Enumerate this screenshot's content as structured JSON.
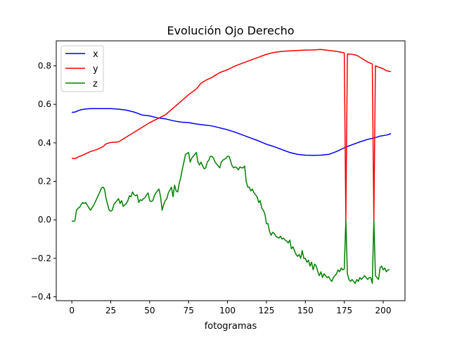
{
  "chart_data": {
    "type": "line",
    "title": "Evolución Ojo Derecho",
    "xlabel": "fotogramas",
    "ylabel": "",
    "xlim": [
      -10,
      214
    ],
    "ylim": [
      -0.42,
      0.93
    ],
    "x_ticks": [
      0,
      25,
      50,
      75,
      100,
      125,
      150,
      175,
      200
    ],
    "x_tick_labels": [
      "0",
      "25",
      "50",
      "75",
      "100",
      "125",
      "150",
      "175",
      "200"
    ],
    "y_ticks": [
      -0.4,
      -0.2,
      0.0,
      0.2,
      0.4,
      0.6,
      0.8
    ],
    "y_tick_labels": [
      "−0.4",
      "−0.2",
      "0.0",
      "0.2",
      "0.4",
      "0.6",
      "0.8"
    ],
    "legend_position": "top-left",
    "grid": false,
    "series": [
      {
        "name": "x",
        "color": "#0000ff",
        "points": [
          [
            0,
            0.558
          ],
          [
            2,
            0.56
          ],
          [
            5,
            0.57
          ],
          [
            8,
            0.575
          ],
          [
            12,
            0.578
          ],
          [
            18,
            0.578
          ],
          [
            25,
            0.578
          ],
          [
            30,
            0.575
          ],
          [
            35,
            0.57
          ],
          [
            40,
            0.56
          ],
          [
            45,
            0.545
          ],
          [
            50,
            0.54
          ],
          [
            55,
            0.53
          ],
          [
            60,
            0.525
          ],
          [
            65,
            0.515
          ],
          [
            70,
            0.508
          ],
          [
            75,
            0.505
          ],
          [
            80,
            0.498
          ],
          [
            85,
            0.493
          ],
          [
            90,
            0.488
          ],
          [
            95,
            0.478
          ],
          [
            100,
            0.468
          ],
          [
            105,
            0.455
          ],
          [
            110,
            0.44
          ],
          [
            115,
            0.425
          ],
          [
            120,
            0.41
          ],
          [
            125,
            0.393
          ],
          [
            130,
            0.38
          ],
          [
            135,
            0.365
          ],
          [
            140,
            0.35
          ],
          [
            145,
            0.34
          ],
          [
            150,
            0.336
          ],
          [
            155,
            0.335
          ],
          [
            160,
            0.336
          ],
          [
            165,
            0.34
          ],
          [
            170,
            0.355
          ],
          [
            176,
            0.378
          ],
          [
            180,
            0.39
          ],
          [
            185,
            0.405
          ],
          [
            190,
            0.418
          ],
          [
            194,
            0.425
          ],
          [
            198,
            0.435
          ],
          [
            202,
            0.44
          ],
          [
            205,
            0.448
          ]
        ]
      },
      {
        "name": "y",
        "color": "#ff0000",
        "points": [
          [
            0,
            0.32
          ],
          [
            2,
            0.318
          ],
          [
            5,
            0.33
          ],
          [
            8,
            0.34
          ],
          [
            12,
            0.355
          ],
          [
            16,
            0.365
          ],
          [
            20,
            0.38
          ],
          [
            22,
            0.395
          ],
          [
            25,
            0.402
          ],
          [
            30,
            0.405
          ],
          [
            32,
            0.415
          ],
          [
            35,
            0.43
          ],
          [
            40,
            0.455
          ],
          [
            45,
            0.48
          ],
          [
            50,
            0.505
          ],
          [
            55,
            0.525
          ],
          [
            60,
            0.545
          ],
          [
            65,
            0.58
          ],
          [
            70,
            0.615
          ],
          [
            75,
            0.65
          ],
          [
            80,
            0.68
          ],
          [
            83,
            0.71
          ],
          [
            86,
            0.725
          ],
          [
            90,
            0.74
          ],
          [
            95,
            0.765
          ],
          [
            100,
            0.78
          ],
          [
            105,
            0.8
          ],
          [
            110,
            0.815
          ],
          [
            115,
            0.83
          ],
          [
            120,
            0.845
          ],
          [
            125,
            0.86
          ],
          [
            130,
            0.87
          ],
          [
            135,
            0.875
          ],
          [
            140,
            0.878
          ],
          [
            145,
            0.88
          ],
          [
            150,
            0.882
          ],
          [
            155,
            0.883
          ],
          [
            160,
            0.885
          ],
          [
            165,
            0.88
          ],
          [
            170,
            0.875
          ],
          [
            175,
            0.868
          ],
          [
            176,
            0.0
          ],
          [
            177,
            0.862
          ],
          [
            180,
            0.86
          ],
          [
            183,
            0.855
          ],
          [
            186,
            0.84
          ],
          [
            190,
            0.82
          ],
          [
            193,
            0.81
          ],
          [
            194,
            0.0
          ],
          [
            195,
            0.8
          ],
          [
            200,
            0.785
          ],
          [
            202,
            0.775
          ],
          [
            205,
            0.77
          ]
        ]
      },
      {
        "name": "z",
        "color": "#008000",
        "points": [
          [
            0,
            -0.005
          ],
          [
            1,
            -0.008
          ],
          [
            2,
            -0.005
          ],
          [
            3,
            0.05
          ],
          [
            4,
            0.06
          ],
          [
            5,
            0.065
          ],
          [
            6,
            0.08
          ],
          [
            7,
            0.09
          ],
          [
            8,
            0.085
          ],
          [
            9,
            0.09
          ],
          [
            10,
            0.075
          ],
          [
            12,
            0.05
          ],
          [
            14,
            0.075
          ],
          [
            16,
            0.11
          ],
          [
            18,
            0.145
          ],
          [
            19,
            0.165
          ],
          [
            20,
            0.17
          ],
          [
            21,
            0.16
          ],
          [
            22,
            0.11
          ],
          [
            24,
            0.05
          ],
          [
            25,
            0.045
          ],
          [
            26,
            0.05
          ],
          [
            27,
            0.08
          ],
          [
            29,
            0.1
          ],
          [
            30,
            0.11
          ],
          [
            31,
            0.085
          ],
          [
            32,
            0.1
          ],
          [
            33,
            0.07
          ],
          [
            35,
            0.085
          ],
          [
            36,
            0.1
          ],
          [
            37,
            0.125
          ],
          [
            38,
            0.12
          ],
          [
            39,
            0.145
          ],
          [
            40,
            0.13
          ],
          [
            41,
            0.125
          ],
          [
            42,
            0.13
          ],
          [
            43,
            0.09
          ],
          [
            44,
            0.105
          ],
          [
            45,
            0.1
          ],
          [
            46,
            0.11
          ],
          [
            47,
            0.115
          ],
          [
            48,
            0.13
          ],
          [
            49,
            0.14
          ],
          [
            50,
            0.1
          ],
          [
            51,
            0.095
          ],
          [
            52,
            0.1
          ],
          [
            53,
            0.125
          ],
          [
            54,
            0.14
          ],
          [
            55,
            0.15
          ],
          [
            56,
            0.16
          ],
          [
            57,
            0.12
          ],
          [
            58,
            0.05
          ],
          [
            59,
            0.08
          ],
          [
            60,
            0.1
          ],
          [
            61,
            0.11
          ],
          [
            62,
            0.14
          ],
          [
            63,
            0.155
          ],
          [
            64,
            0.17
          ],
          [
            65,
            0.12
          ],
          [
            66,
            0.18
          ],
          [
            67,
            0.15
          ],
          [
            68,
            0.145
          ],
          [
            69,
            0.19
          ],
          [
            70,
            0.22
          ],
          [
            71,
            0.265
          ],
          [
            72,
            0.3
          ],
          [
            73,
            0.34
          ],
          [
            74,
            0.345
          ],
          [
            75,
            0.35
          ],
          [
            76,
            0.3
          ],
          [
            77,
            0.32
          ],
          [
            78,
            0.33
          ],
          [
            79,
            0.34
          ],
          [
            80,
            0.35
          ],
          [
            81,
            0.3
          ],
          [
            82,
            0.285
          ],
          [
            83,
            0.3
          ],
          [
            84,
            0.28
          ],
          [
            85,
            0.265
          ],
          [
            86,
            0.27
          ],
          [
            87,
            0.3
          ],
          [
            88,
            0.31
          ],
          [
            89,
            0.33
          ],
          [
            90,
            0.33
          ],
          [
            91,
            0.32
          ],
          [
            92,
            0.3
          ],
          [
            93,
            0.29
          ],
          [
            95,
            0.27
          ],
          [
            96,
            0.3
          ],
          [
            97,
            0.31
          ],
          [
            98,
            0.315
          ],
          [
            99,
            0.32
          ],
          [
            100,
            0.33
          ],
          [
            101,
            0.33
          ],
          [
            102,
            0.305
          ],
          [
            103,
            0.28
          ],
          [
            104,
            0.27
          ],
          [
            105,
            0.275
          ],
          [
            106,
            0.27
          ],
          [
            107,
            0.26
          ],
          [
            108,
            0.275
          ],
          [
            109,
            0.27
          ],
          [
            110,
            0.27
          ],
          [
            111,
            0.28
          ],
          [
            112,
            0.2
          ],
          [
            113,
            0.17
          ],
          [
            114,
            0.17
          ],
          [
            115,
            0.15
          ],
          [
            116,
            0.16
          ],
          [
            117,
            0.14
          ],
          [
            118,
            0.13
          ],
          [
            119,
            0.12
          ],
          [
            120,
            0.09
          ],
          [
            121,
            0.1
          ],
          [
            122,
            0.06
          ],
          [
            123,
            0.05
          ],
          [
            124,
            0.03
          ],
          [
            125,
            -0.02
          ],
          [
            126,
            -0.02
          ],
          [
            127,
            -0.06
          ],
          [
            128,
            -0.08
          ],
          [
            129,
            -0.065
          ],
          [
            130,
            -0.07
          ],
          [
            131,
            -0.085
          ],
          [
            132,
            -0.09
          ],
          [
            133,
            -0.095
          ],
          [
            134,
            -0.085
          ],
          [
            135,
            -0.1
          ],
          [
            136,
            -0.095
          ],
          [
            137,
            -0.105
          ],
          [
            138,
            -0.11
          ],
          [
            139,
            -0.12
          ],
          [
            140,
            -0.105
          ],
          [
            141,
            -0.15
          ],
          [
            142,
            -0.14
          ],
          [
            143,
            -0.16
          ],
          [
            144,
            -0.18
          ],
          [
            145,
            -0.19
          ],
          [
            146,
            -0.18
          ],
          [
            147,
            -0.2
          ],
          [
            148,
            -0.16
          ],
          [
            149,
            -0.2
          ],
          [
            150,
            -0.2
          ],
          [
            151,
            -0.22
          ],
          [
            152,
            -0.21
          ],
          [
            153,
            -0.24
          ],
          [
            154,
            -0.22
          ],
          [
            155,
            -0.26
          ],
          [
            156,
            -0.23
          ],
          [
            157,
            -0.24
          ],
          [
            158,
            -0.27
          ],
          [
            159,
            -0.29
          ],
          [
            160,
            -0.27
          ],
          [
            161,
            -0.3
          ],
          [
            162,
            -0.28
          ],
          [
            163,
            -0.29
          ],
          [
            164,
            -0.3
          ],
          [
            165,
            -0.295
          ],
          [
            166,
            -0.31
          ],
          [
            167,
            -0.32
          ],
          [
            168,
            -0.3
          ],
          [
            169,
            -0.29
          ],
          [
            170,
            -0.28
          ],
          [
            171,
            -0.26
          ],
          [
            172,
            -0.27
          ],
          [
            173,
            -0.25
          ],
          [
            174,
            -0.26
          ],
          [
            175,
            -0.255
          ],
          [
            176,
            0.0
          ],
          [
            177,
            -0.28
          ],
          [
            178,
            -0.31
          ],
          [
            179,
            -0.32
          ],
          [
            180,
            -0.31
          ],
          [
            181,
            -0.32
          ],
          [
            182,
            -0.33
          ],
          [
            183,
            -0.31
          ],
          [
            184,
            -0.32
          ],
          [
            185,
            -0.3
          ],
          [
            186,
            -0.31
          ],
          [
            187,
            -0.3
          ],
          [
            188,
            -0.29
          ],
          [
            189,
            -0.3
          ],
          [
            190,
            -0.31
          ],
          [
            191,
            -0.3
          ],
          [
            192,
            -0.3
          ],
          [
            193,
            -0.33
          ],
          [
            194,
            0.0
          ],
          [
            195,
            -0.29
          ],
          [
            196,
            -0.3
          ],
          [
            197,
            -0.31
          ],
          [
            198,
            -0.25
          ],
          [
            199,
            -0.24
          ],
          [
            200,
            -0.26
          ],
          [
            201,
            -0.25
          ],
          [
            202,
            -0.27
          ],
          [
            203,
            -0.26
          ],
          [
            204,
            -0.26
          ]
        ]
      }
    ]
  }
}
